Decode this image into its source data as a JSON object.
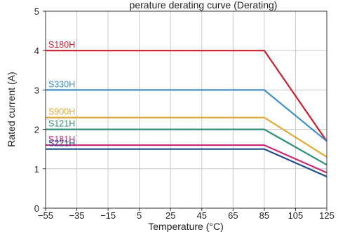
{
  "chart_data": {
    "type": "line",
    "title": "perature derating curve (Derating)",
    "xlabel": "Temperature (°C)",
    "ylabel": "Rated current (A)",
    "xlim": [
      -55,
      125
    ],
    "ylim": [
      0,
      5
    ],
    "xticks": [
      -55,
      -35,
      -15,
      5,
      25,
      45,
      65,
      85,
      105,
      125
    ],
    "xtick_labels": [
      "−55",
      "−35",
      "−15",
      "5",
      "25",
      "45",
      "65",
      "85",
      "105",
      "125"
    ],
    "yticks": [
      0,
      1,
      2,
      3,
      4,
      5
    ],
    "ytick_labels": [
      "0",
      "1",
      "2",
      "3",
      "4",
      "5"
    ],
    "grid": true,
    "series": [
      {
        "name": "S180H",
        "color": "#c8202e",
        "x": [
          -55,
          85,
          125
        ],
        "y": [
          4.0,
          4.0,
          1.7
        ]
      },
      {
        "name": "S330H",
        "color": "#3f8fc4",
        "x": [
          -55,
          85,
          125
        ],
        "y": [
          3.0,
          3.0,
          1.7
        ]
      },
      {
        "name": "S900H",
        "color": "#e0a93a",
        "x": [
          -55,
          85,
          125
        ],
        "y": [
          2.3,
          2.3,
          1.3
        ]
      },
      {
        "name": "S121H",
        "color": "#2e8f76",
        "x": [
          -55,
          85,
          125
        ],
        "y": [
          2.0,
          2.0,
          1.1
        ]
      },
      {
        "name": "S181H",
        "color": "#c8277a",
        "x": [
          -55,
          85,
          125
        ],
        "y": [
          1.6,
          1.6,
          0.9
        ]
      },
      {
        "name": "S221H",
        "color": "#1f4e8c",
        "x": [
          -55,
          85,
          125
        ],
        "y": [
          1.5,
          1.5,
          0.8
        ]
      }
    ]
  }
}
